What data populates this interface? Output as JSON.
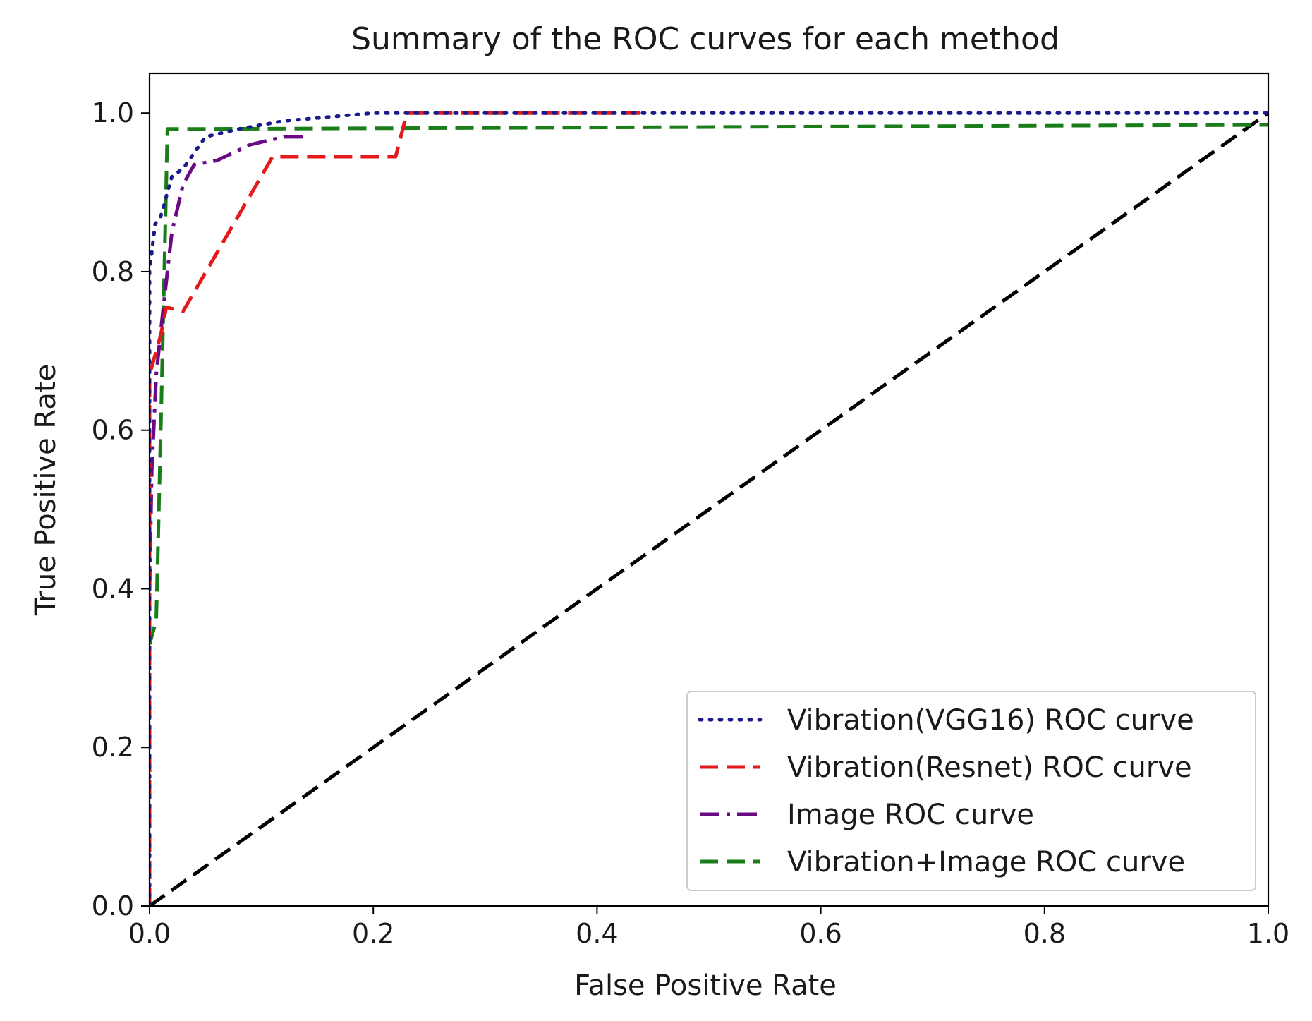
{
  "chart_data": {
    "type": "line",
    "title": "Summary of the ROC curves for each method",
    "xlabel": "False Positive Rate",
    "ylabel": "True Positive Rate",
    "xlim": [
      0.0,
      1.0
    ],
    "ylim": [
      0.0,
      1.05
    ],
    "xticks": [
      0.0,
      0.2,
      0.4,
      0.6,
      0.8,
      1.0
    ],
    "yticks": [
      0.0,
      0.2,
      0.4,
      0.6,
      0.8,
      1.0
    ],
    "xtick_labels": [
      "0.0",
      "0.2",
      "0.4",
      "0.6",
      "0.8",
      "1.0"
    ],
    "ytick_labels": [
      "0.0",
      "0.2",
      "0.4",
      "0.6",
      "0.8",
      "1.0"
    ],
    "grid": false,
    "legend_position": "lower-right",
    "series": [
      {
        "name": "Vibration(VGG16) ROC curve",
        "color": "#1a1a8c",
        "style": "dotted",
        "x": [
          0.0,
          0.0,
          0.005,
          0.01,
          0.02,
          0.03,
          0.05,
          0.08,
          0.12,
          0.2,
          0.3,
          1.0
        ],
        "y": [
          0.0,
          0.8,
          0.86,
          0.87,
          0.92,
          0.93,
          0.97,
          0.98,
          0.99,
          1.0,
          1.0,
          1.0
        ]
      },
      {
        "name": "Vibration(Resnet) ROC curve",
        "color": "#e31a1c",
        "style": "dashed",
        "x": [
          0.0,
          0.0,
          0.01,
          0.015,
          0.03,
          0.11,
          0.22,
          0.23,
          0.3,
          0.44
        ],
        "y": [
          0.0,
          0.67,
          0.72,
          0.755,
          0.75,
          0.945,
          0.945,
          1.0,
          1.0,
          1.0
        ]
      },
      {
        "name": "Image ROC curve",
        "color": "#6a0a84",
        "style": "dashdot",
        "x": [
          0.0,
          0.002,
          0.006,
          0.012,
          0.02,
          0.03,
          0.04,
          0.06,
          0.09,
          0.12,
          0.14
        ],
        "y": [
          0.4,
          0.55,
          0.67,
          0.75,
          0.85,
          0.91,
          0.935,
          0.94,
          0.96,
          0.97,
          0.97
        ]
      },
      {
        "name": "Vibration+Image ROC curve",
        "color": "#1a7d1a",
        "style": "dashed",
        "x": [
          0.0,
          0.006,
          0.01,
          0.016,
          0.016,
          0.05,
          1.0
        ],
        "y": [
          0.33,
          0.36,
          0.6,
          0.98,
          0.98,
          0.98,
          0.985
        ]
      },
      {
        "name": "",
        "color": "#000000",
        "style": "dashed-diagonal",
        "x": [
          0.0,
          1.0
        ],
        "y": [
          0.0,
          1.0
        ]
      }
    ]
  }
}
